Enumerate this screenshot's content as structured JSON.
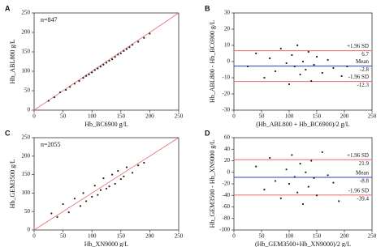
{
  "chart_data": [
    {
      "type": "scatter",
      "panel": "A",
      "annotation": "n=847",
      "x_label": "Hb_BC6900 g/L",
      "y_label": "Hb_ABL800 g/L",
      "xlim": [
        0,
        250
      ],
      "ylim": [
        0,
        250
      ],
      "xticks": [
        0,
        50,
        100,
        150,
        200,
        250
      ],
      "yticks": [
        0,
        50,
        100,
        150,
        200,
        250
      ],
      "identity_line": true,
      "identity_color": "#e8686d",
      "series": [
        {
          "color": "#222222",
          "x": [
            25,
            35,
            45,
            55,
            62,
            70,
            78,
            85,
            90,
            95,
            100,
            105,
            110,
            115,
            120,
            125,
            130,
            135,
            140,
            145,
            150,
            155,
            160,
            165,
            170,
            180,
            190,
            200
          ],
          "values": [
            24,
            33,
            46,
            52,
            60,
            68,
            75,
            83,
            88,
            92,
            97,
            103,
            107,
            112,
            117,
            122,
            127,
            131,
            137,
            143,
            146,
            152,
            157,
            162,
            168,
            176,
            186,
            197
          ]
        }
      ]
    },
    {
      "type": "bland-altman",
      "panel": "B",
      "x_label": "(Hb_ABL800 + Hb_BC6900)/2 g/L",
      "y_label": "Hb_ABL800 - Hb_BC6900 g/L",
      "xlim": [
        0,
        250
      ],
      "ylim": [
        -30,
        30
      ],
      "xticks": [
        0,
        50,
        100,
        150,
        200,
        250
      ],
      "yticks": [
        -30,
        -20,
        -10,
        0,
        10,
        20,
        30
      ],
      "hlines": [
        {
          "name": "+1.96 SD",
          "value": 6.7,
          "color": "#e8686d"
        },
        {
          "name": "Mean",
          "value": -2.8,
          "color": "#2b3fb8"
        },
        {
          "name": "-1.96 SD",
          "value": -12.3,
          "color": "#e8686d"
        }
      ],
      "series": [
        {
          "color": "#222222",
          "x": [
            25,
            40,
            55,
            65,
            75,
            85,
            95,
            100,
            105,
            110,
            115,
            120,
            125,
            130,
            135,
            140,
            145,
            150,
            160,
            170,
            180,
            195,
            205
          ],
          "values": [
            -3,
            5,
            -10,
            2,
            -6,
            8,
            -1,
            -14,
            4,
            -3,
            10,
            -8,
            0,
            -5,
            6,
            -12,
            -2,
            3,
            -7,
            1,
            -4,
            -9,
            -3
          ]
        }
      ]
    },
    {
      "type": "scatter",
      "panel": "C",
      "annotation": "n=2055",
      "x_label": "Hb_XN9000 g/L",
      "y_label": "Hb_GEM3500 g/L",
      "xlim": [
        0,
        250
      ],
      "ylim": [
        0,
        250
      ],
      "xticks": [
        0,
        50,
        100,
        150,
        200,
        250
      ],
      "yticks": [
        0,
        50,
        100,
        150,
        200,
        250
      ],
      "identity_line": true,
      "identity_color": "#e8686d",
      "series": [
        {
          "color": "#222222",
          "x": [
            30,
            40,
            50,
            60,
            70,
            80,
            85,
            90,
            100,
            105,
            110,
            115,
            120,
            125,
            130,
            135,
            140,
            145,
            150,
            155,
            160,
            170,
            180,
            190
          ],
          "values": [
            45,
            35,
            70,
            48,
            85,
            65,
            100,
            78,
            90,
            120,
            95,
            108,
            140,
            112,
            118,
            150,
            125,
            160,
            138,
            145,
            170,
            155,
            175,
            182
          ]
        }
      ]
    },
    {
      "type": "bland-altman",
      "panel": "D",
      "x_label": "(Hb_GEM3500+Hb_XN9000)/2 g/L",
      "y_label": "Hb_GEM3500 - Hb_XN9000 g/L",
      "xlim": [
        0,
        250
      ],
      "ylim": [
        -100,
        60
      ],
      "xticks": [
        0,
        50,
        100,
        150,
        200,
        250
      ],
      "yticks": [
        -100,
        -80,
        -60,
        -40,
        -20,
        0,
        20,
        40,
        60
      ],
      "hlines": [
        {
          "name": "+1.96 SD",
          "value": 21.9,
          "color": "#e8686d"
        },
        {
          "name": "Mean",
          "value": -8.8,
          "color": "#2b3fb8"
        },
        {
          "name": "-1.96 SD",
          "value": -39.4,
          "color": "#e8686d"
        }
      ],
      "series": [
        {
          "color": "#222222",
          "x": [
            40,
            55,
            65,
            75,
            85,
            95,
            100,
            105,
            110,
            115,
            120,
            125,
            130,
            135,
            140,
            145,
            150,
            160,
            170,
            180,
            190
          ],
          "values": [
            10,
            -30,
            25,
            -15,
            -45,
            5,
            -20,
            30,
            -8,
            -35,
            15,
            -55,
            0,
            -25,
            20,
            -10,
            -40,
            35,
            -5,
            -18,
            -50
          ]
        }
      ]
    }
  ]
}
